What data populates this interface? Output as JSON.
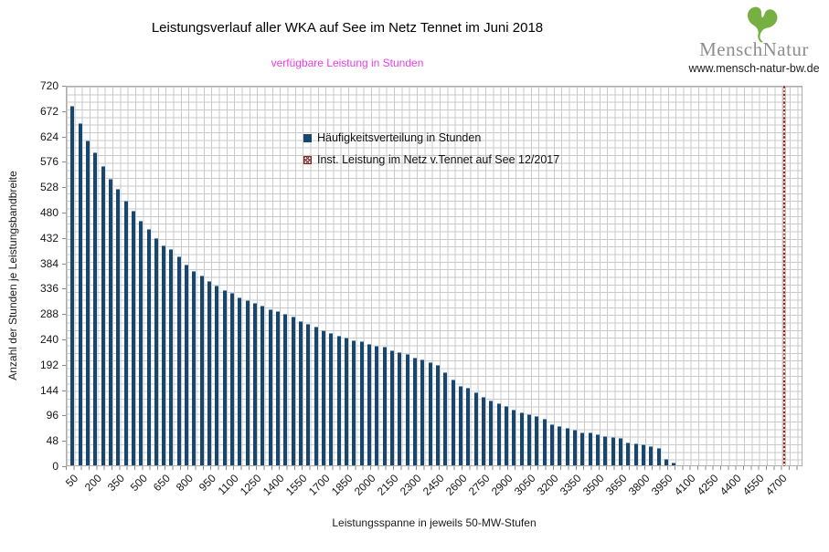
{
  "header": {
    "title": "Leistungsverlauf aller WKA auf See im Netz Tennet im Juni 2018",
    "subtitle": "verfügbare Leistung in Stunden",
    "subtitle_color": "#e93de9"
  },
  "logo": {
    "brand": "MenschNatur",
    "url": "www.mensch-natur-bw.de",
    "leaf_icon": "ginkgo-leaf-icon",
    "leaf_color": "#76b043",
    "brand_color": "#8d8d8d"
  },
  "legend": {
    "items": [
      {
        "label": "Häufigkeitsverteilung in Stunden",
        "swatch": "solid",
        "color": "#17466f"
      },
      {
        "label": "Inst. Leistung im Netz v.Tennet auf See 12/2017",
        "swatch": "crosshatch",
        "color": "#7c2a2a"
      }
    ]
  },
  "chart_data": {
    "type": "bar",
    "title": "Leistungsverlauf aller WKA auf See im Netz Tennet im Juni 2018",
    "subtitle": "verfügbare Leistung in Stunden",
    "xlabel": "Leistungsspanne in jeweils 50-MW-Stufen",
    "ylabel": "Anzahl der Stunden je Leistungsbandbreite",
    "ylim": [
      0,
      720
    ],
    "ytick_step": 48,
    "bin_width_mw": 50,
    "grid": true,
    "legend_position": "inside-top-center",
    "bar_color": "#17466f",
    "categories": [
      50,
      100,
      150,
      200,
      250,
      300,
      350,
      400,
      450,
      500,
      550,
      600,
      650,
      700,
      750,
      800,
      850,
      900,
      950,
      1000,
      1050,
      1100,
      1150,
      1200,
      1250,
      1300,
      1350,
      1400,
      1450,
      1500,
      1550,
      1600,
      1650,
      1700,
      1750,
      1800,
      1850,
      1900,
      1950,
      2000,
      2050,
      2100,
      2150,
      2200,
      2250,
      2300,
      2350,
      2400,
      2450,
      2500,
      2550,
      2600,
      2650,
      2700,
      2750,
      2800,
      2850,
      2900,
      2950,
      3000,
      3050,
      3100,
      3150,
      3200,
      3250,
      3300,
      3350,
      3400,
      3450,
      3500,
      3550,
      3600,
      3650,
      3700,
      3750,
      3800,
      3850,
      3900,
      3950,
      4000,
      4050,
      4100,
      4150,
      4200,
      4250,
      4300,
      4350,
      4400,
      4450,
      4500,
      4550,
      4600,
      4650,
      4700
    ],
    "x_tick_labels": [
      50,
      200,
      350,
      500,
      650,
      800,
      950,
      1100,
      1250,
      1400,
      1550,
      1700,
      1850,
      2000,
      2150,
      2300,
      2450,
      2600,
      2750,
      2900,
      3050,
      3200,
      3350,
      3500,
      3650,
      3800,
      3950,
      4100,
      4250,
      4400,
      4550,
      4700
    ],
    "series": [
      {
        "name": "Häufigkeitsverteilung in Stunden",
        "values": [
          681,
          648,
          614,
          592,
          567,
          543,
          523,
          500,
          482,
          462,
          447,
          430,
          416,
          409,
          395,
          380,
          368,
          360,
          348,
          340,
          332,
          327,
          318,
          313,
          307,
          303,
          296,
          292,
          287,
          281,
          273,
          268,
          262,
          256,
          250,
          246,
          242,
          237,
          234,
          230,
          227,
          224,
          218,
          214,
          210,
          204,
          200,
          195,
          190,
          176,
          162,
          151,
          146,
          139,
          130,
          123,
          118,
          112,
          105,
          101,
          97,
          93,
          88,
          78,
          75,
          71,
          68,
          63,
          62,
          59,
          56,
          54,
          51,
          44,
          41,
          39,
          36,
          32,
          12,
          5,
          0,
          0,
          0,
          0,
          0,
          0,
          0,
          0,
          0,
          0,
          0,
          0,
          0,
          0
        ]
      }
    ],
    "capacity_line": {
      "label": "Inst. Leistung im Netz v.Tennet auf See 12/2017",
      "x_mw": 4720,
      "pattern": "red-crosshatch"
    }
  }
}
